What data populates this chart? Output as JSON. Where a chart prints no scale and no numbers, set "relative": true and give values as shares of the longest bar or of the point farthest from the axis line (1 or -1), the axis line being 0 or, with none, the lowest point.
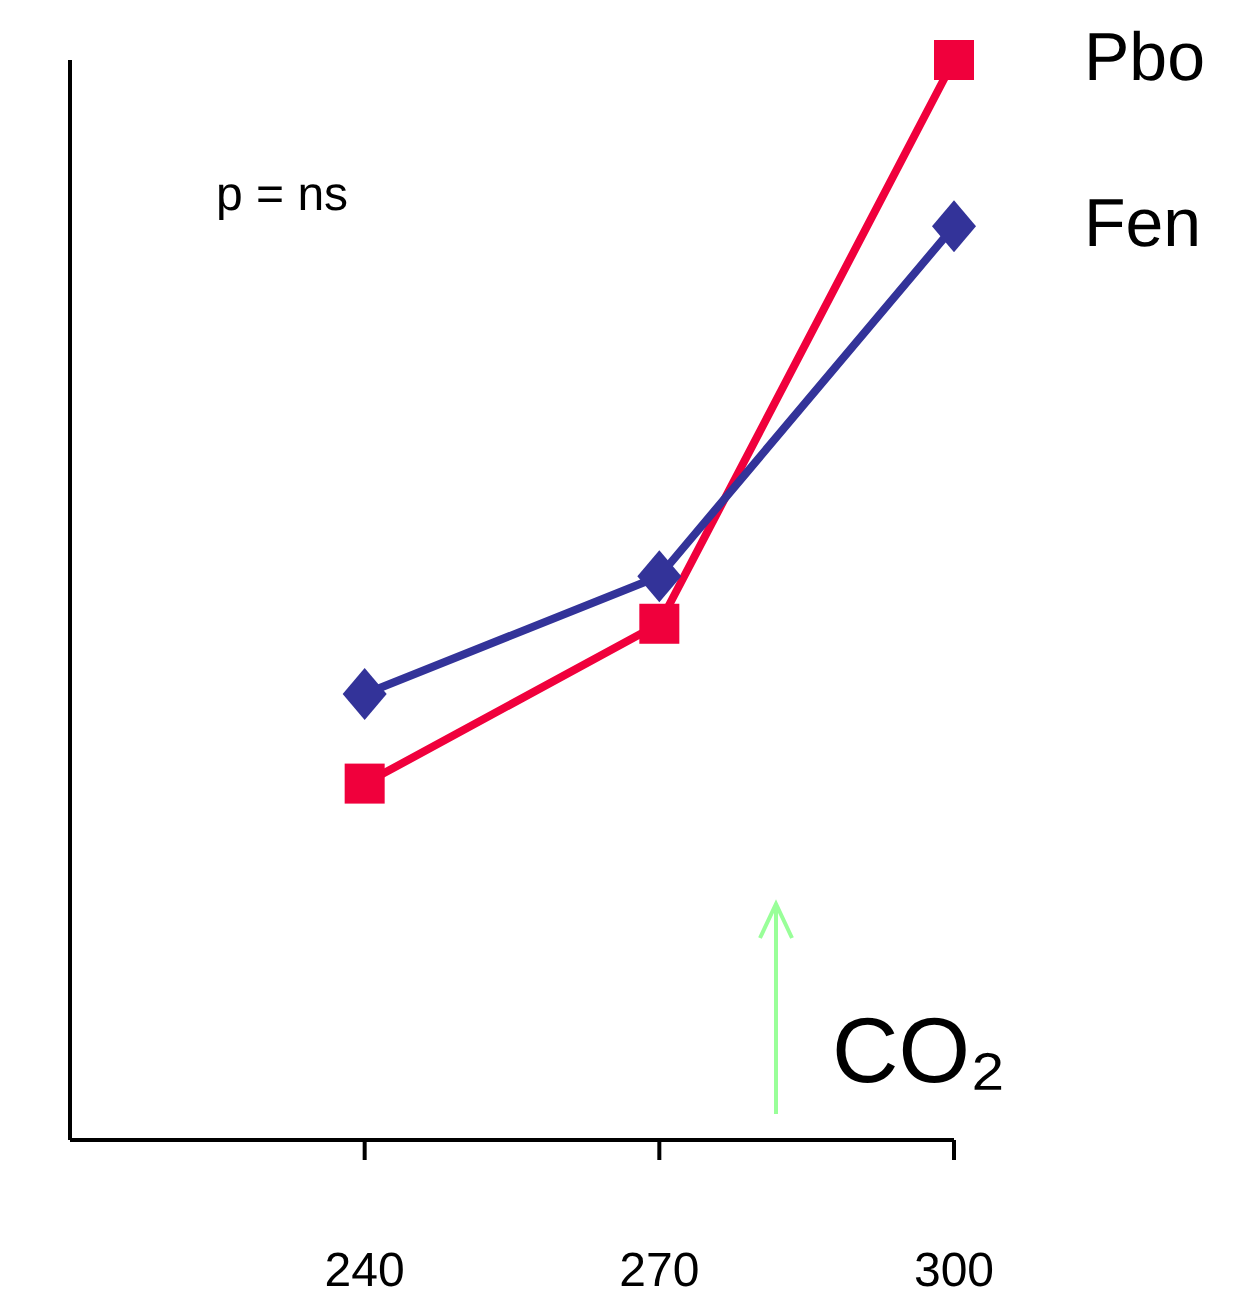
{
  "chart_data": {
    "type": "line",
    "relative": true,
    "x": [
      240,
      270,
      300
    ],
    "xlim": [
      210,
      300
    ],
    "xticks": [
      240,
      270,
      300
    ],
    "legend": false,
    "grid": false,
    "series": [
      {
        "name": "Pbo",
        "color": "#f0003c",
        "marker": "square",
        "values": [
          0.33,
          0.478,
          1
        ]
      },
      {
        "name": "Fen",
        "color": "#333399",
        "marker": "diamond",
        "values": [
          0.413,
          0.522,
          0.846
        ]
      }
    ],
    "annotations": [
      "p =  ns",
      "CO₂"
    ]
  }
}
